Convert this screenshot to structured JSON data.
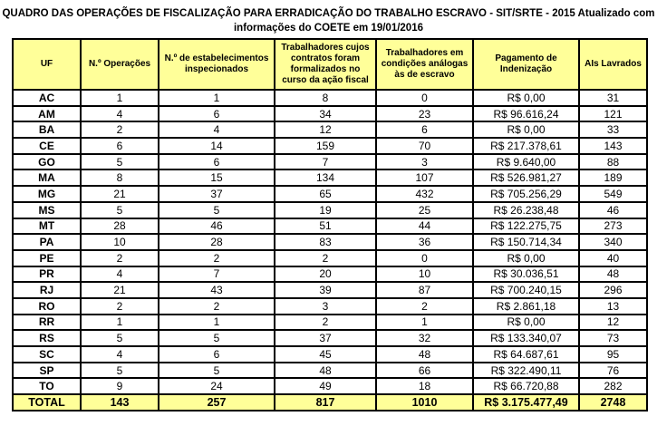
{
  "title": {
    "line1": "QUADRO DAS OPERAÇÕES DE FISCALIZAÇÃO PARA ERRADICAÇÃO DO TRABALHO ESCRAVO - SIT/SRTE - 2015 Atualizado com",
    "line2": "informações do COETE em 19/01/2016"
  },
  "colors": {
    "header_bg": "#FFFF99",
    "border": "#000000",
    "text": "#000000"
  },
  "table": {
    "columns": [
      "UF",
      "N.º Operações",
      "N.º de estabelecimentos inspecionados",
      "Trabalhadores cujos contratos foram formalizados no curso da ação fiscal",
      "Trabalhadores em condições análogas às de escravo",
      "Pagamento de Indenização",
      "AIs Lavrados"
    ],
    "rows": [
      [
        "AC",
        "1",
        "1",
        "8",
        "0",
        "R$ 0,00",
        "31"
      ],
      [
        "AM",
        "4",
        "6",
        "34",
        "23",
        "R$ 96.616,24",
        "121"
      ],
      [
        "BA",
        "2",
        "4",
        "12",
        "6",
        "R$ 0,00",
        "33"
      ],
      [
        "CE",
        "6",
        "14",
        "159",
        "70",
        "R$ 217.378,61",
        "143"
      ],
      [
        "GO",
        "5",
        "6",
        "7",
        "3",
        "R$ 9.640,00",
        "88"
      ],
      [
        "MA",
        "8",
        "15",
        "134",
        "107",
        "R$ 526.981,27",
        "189"
      ],
      [
        "MG",
        "21",
        "37",
        "65",
        "432",
        "R$ 705.256,29",
        "549"
      ],
      [
        "MS",
        "5",
        "5",
        "19",
        "25",
        "R$ 26.238,48",
        "46"
      ],
      [
        "MT",
        "28",
        "46",
        "51",
        "44",
        "R$ 122.275,75",
        "273"
      ],
      [
        "PA",
        "10",
        "28",
        "83",
        "36",
        "R$ 150.714,34",
        "340"
      ],
      [
        "PE",
        "2",
        "2",
        "2",
        "0",
        "R$ 0,00",
        "40"
      ],
      [
        "PR",
        "4",
        "7",
        "20",
        "10",
        "R$ 30.036,51",
        "48"
      ],
      [
        "RJ",
        "21",
        "43",
        "39",
        "87",
        "R$ 700.240,15",
        "296"
      ],
      [
        "RO",
        "2",
        "2",
        "3",
        "2",
        "R$ 2.861,18",
        "13"
      ],
      [
        "RR",
        "1",
        "1",
        "2",
        "1",
        "R$ 0,00",
        "12"
      ],
      [
        "RS",
        "5",
        "5",
        "37",
        "32",
        "R$ 133.340,07",
        "73"
      ],
      [
        "SC",
        "4",
        "6",
        "45",
        "48",
        "R$ 64.687,61",
        "95"
      ],
      [
        "SP",
        "5",
        "5",
        "48",
        "66",
        "R$ 322.490,11",
        "76"
      ],
      [
        "TO",
        "9",
        "24",
        "49",
        "18",
        "R$ 66.720,88",
        "282"
      ]
    ],
    "total": [
      "TOTAL",
      "143",
      "257",
      "817",
      "1010",
      "R$ 3.175.477,49",
      "2748"
    ]
  }
}
